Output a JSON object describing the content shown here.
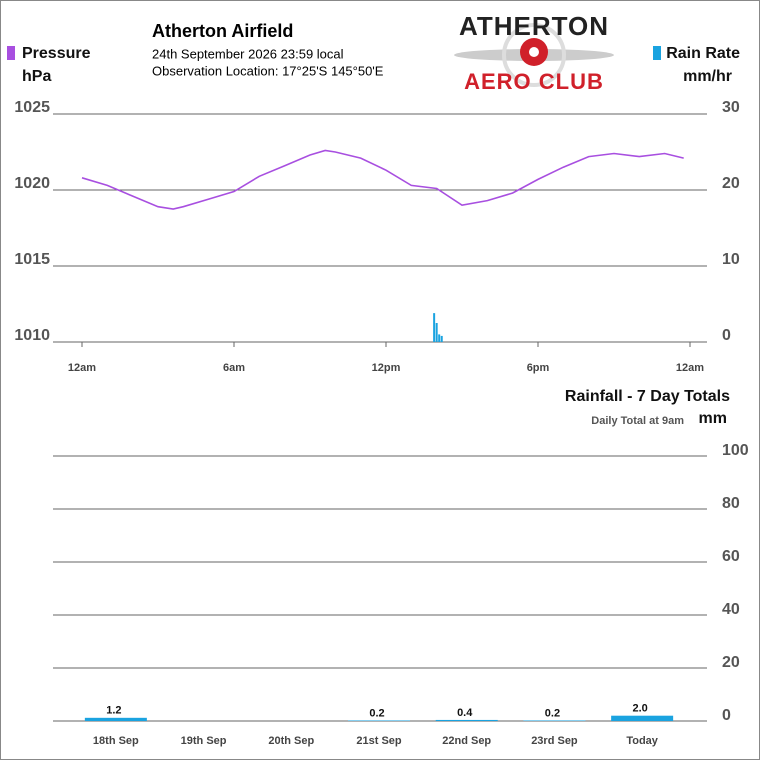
{
  "header": {
    "title": "Atherton Airfield",
    "date": "24th September 2026  23:59 local",
    "location": "Observation Location:  17°25'S 145°50'E"
  },
  "logo": {
    "top": "ATHERTON",
    "bottom": "AERO CLUB"
  },
  "chart_data": [
    {
      "type": "line",
      "ylabel": "hPa",
      "y2label": "mm/hr",
      "xlim": [
        0,
        24
      ],
      "xticks": [
        {
          "value": 0,
          "label": "12am"
        },
        {
          "value": 6,
          "label": "6am"
        },
        {
          "value": 12,
          "label": "12pm"
        },
        {
          "value": 18,
          "label": "6pm"
        },
        {
          "value": 24,
          "label": "12am"
        }
      ],
      "ylim": [
        1010,
        1025
      ],
      "yticks": [
        1010,
        1015,
        1020,
        1025
      ],
      "y2lim": [
        0,
        30
      ],
      "y2ticks": [
        0,
        10,
        20,
        30
      ],
      "grid": true,
      "series": [
        {
          "name": "Pressure",
          "color": "#a84fe0",
          "x": [
            0,
            1,
            2,
            3,
            3.6,
            4,
            5,
            6,
            7,
            8,
            9,
            9.6,
            10,
            11,
            12,
            13,
            14,
            15,
            16,
            17,
            18,
            19,
            20,
            21,
            22,
            23,
            23.75
          ],
          "values": [
            1020.8,
            1020.3,
            1019.6,
            1018.9,
            1018.75,
            1018.9,
            1019.4,
            1019.9,
            1020.9,
            1021.6,
            1022.3,
            1022.6,
            1022.5,
            1022.1,
            1021.3,
            1020.3,
            1020.1,
            1019.0,
            1019.3,
            1019.8,
            1020.7,
            1021.5,
            1022.2,
            1022.4,
            1022.2,
            1022.4,
            1022.1
          ]
        },
        {
          "name": "Rain Rate",
          "color": "#1aa3e0",
          "type": "bar",
          "axis": "y2",
          "x": [
            13.9,
            14.0,
            14.1,
            14.2
          ],
          "values": [
            3.8,
            2.5,
            1.0,
            0.8
          ]
        }
      ]
    },
    {
      "type": "bar",
      "title": "Rainfall - 7 Day Totals",
      "subtitle": "Daily Total at 9am",
      "ylabel": "mm",
      "categories": [
        "18th Sep",
        "19th Sep",
        "20th Sep",
        "21st Sep",
        "22nd Sep",
        "23rd Sep",
        "Today"
      ],
      "values": [
        1.2,
        null,
        null,
        0.2,
        0.4,
        0.2,
        2.0
      ],
      "value_labels": [
        "1.2",
        null,
        null,
        "0.2",
        "0.4",
        "0.2",
        "2.0"
      ],
      "color": "#1aa3e0",
      "ylim": [
        0,
        100
      ],
      "yticks": [
        0,
        20,
        40,
        60,
        80,
        100
      ],
      "grid": true
    }
  ]
}
